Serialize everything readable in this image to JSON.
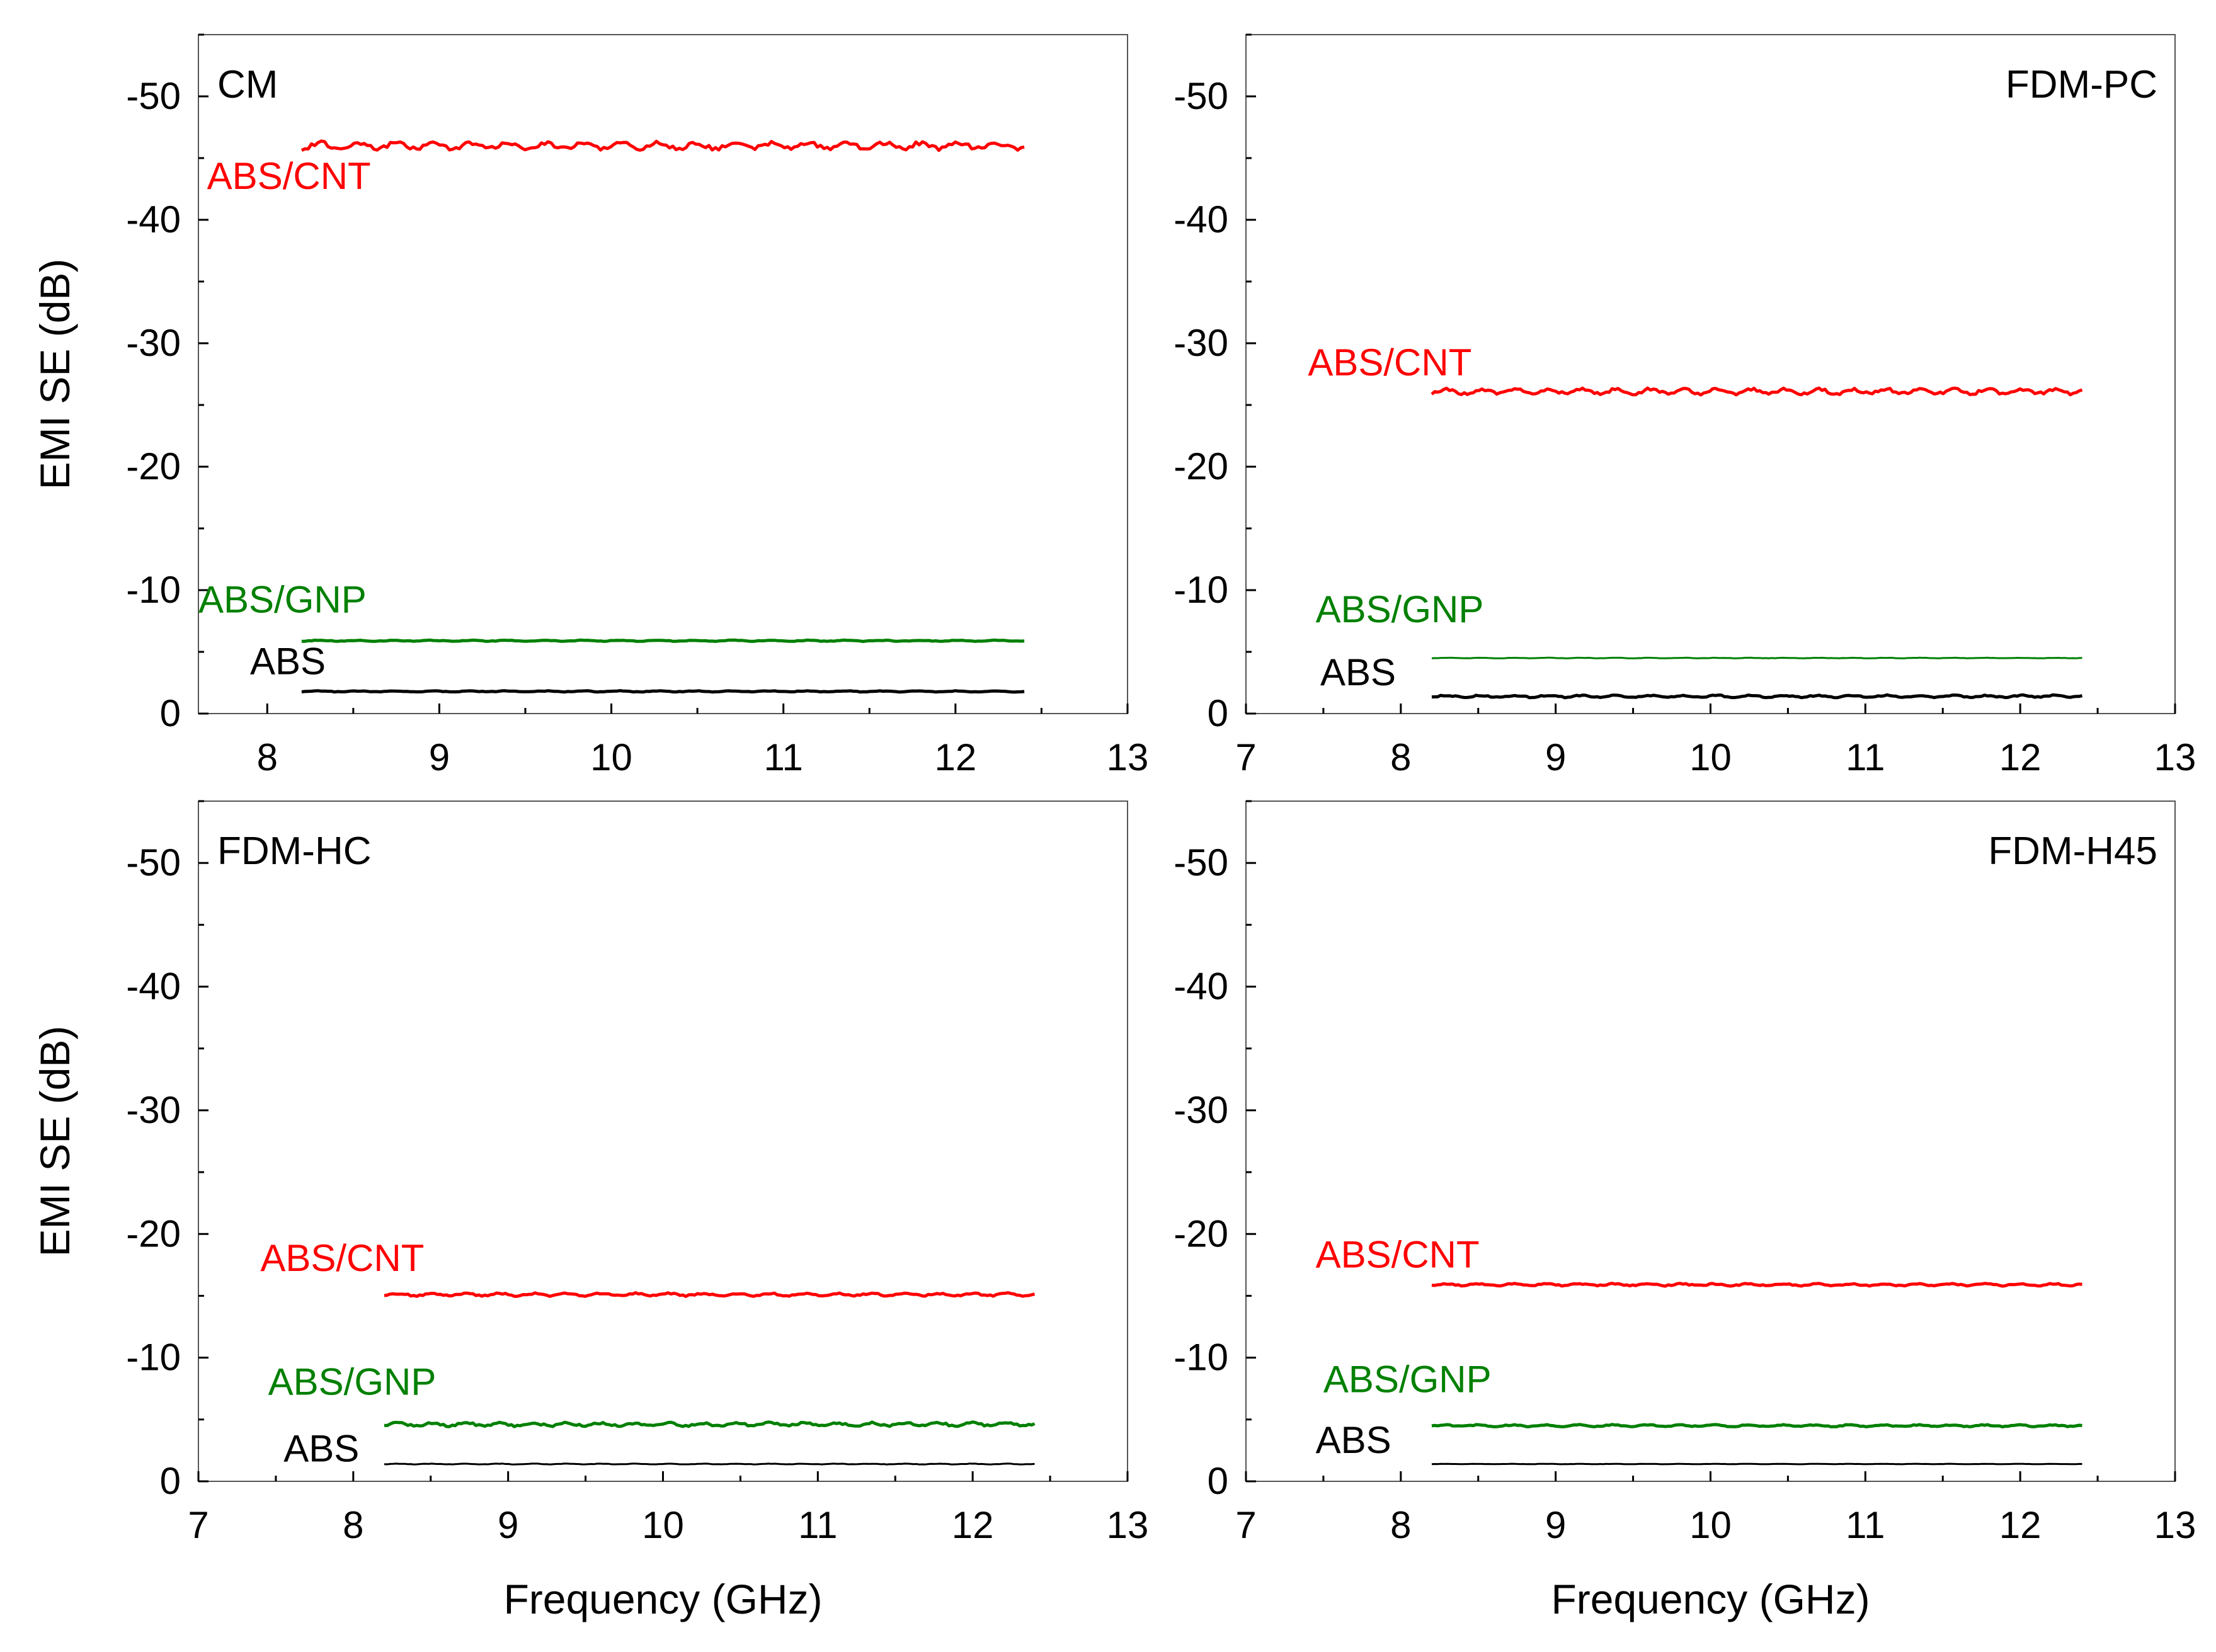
{
  "colors": {
    "ABS": "#000000",
    "ABS/GNP": "#008000",
    "ABS/CNT": "#ff0000",
    "axis": "#000000"
  },
  "chart_data": [
    {
      "type": "line",
      "title": "CM",
      "title_position": "top-left",
      "xlim": [
        7.6,
        13
      ],
      "ylim": [
        0,
        -55
      ],
      "xticks": [
        "8",
        "9",
        "10",
        "11",
        "12",
        "13"
      ],
      "yticks": [
        "0",
        "-10",
        "-20",
        "-30",
        "-40",
        "-50"
      ],
      "xlabel": "",
      "ylabel": "EMI SE (dB)",
      "x_range": [
        8.2,
        12.4
      ],
      "series": [
        {
          "name": "ABS/CNT",
          "level": -46.0,
          "noise": 0.4,
          "label": "ABS/CNT",
          "label_x": 7.65,
          "label_y": -42.5
        },
        {
          "name": "ABS/GNP",
          "level": -5.9,
          "noise": 0.06,
          "label": "ABS/GNP",
          "label_x": 7.6,
          "label_y": -8.2
        },
        {
          "name": "ABS",
          "level": -1.8,
          "noise": 0.06,
          "label": "ABS",
          "label_x": 7.9,
          "label_y": -3.2
        }
      ]
    },
    {
      "type": "line",
      "title": "FDM-PC",
      "title_position": "top-right",
      "xlim": [
        7,
        13
      ],
      "ylim": [
        0,
        -55
      ],
      "xticks": [
        "7",
        "8",
        "9",
        "10",
        "11",
        "12",
        "13"
      ],
      "yticks": [
        "0",
        "-10",
        "-20",
        "-30",
        "-40",
        "-50"
      ],
      "xlabel": "",
      "ylabel": "",
      "x_range": [
        8.2,
        12.4
      ],
      "series": [
        {
          "name": "ABS/CNT",
          "level": -26.1,
          "noise": 0.3,
          "label": "ABS/CNT",
          "label_x": 7.4,
          "label_y": -27.4
        },
        {
          "name": "ABS/GNP",
          "level": -4.5,
          "noise": 0.03,
          "label": "ABS/GNP",
          "label_x": 7.45,
          "label_y": -7.4
        },
        {
          "name": "ABS",
          "level": -1.4,
          "noise": 0.12,
          "label": "ABS",
          "label_x": 7.48,
          "label_y": -2.3
        }
      ]
    },
    {
      "type": "line",
      "title": "FDM-HC",
      "title_position": "top-left",
      "xlim": [
        7,
        13
      ],
      "ylim": [
        0,
        -55
      ],
      "xticks": [
        "7",
        "8",
        "9",
        "10",
        "11",
        "12",
        "13"
      ],
      "yticks": [
        "0",
        "-10",
        "-20",
        "-30",
        "-40",
        "-50"
      ],
      "xlabel": "Frequency (GHz)",
      "ylabel": "EMI SE (dB)",
      "x_range": [
        8.2,
        12.4
      ],
      "series": [
        {
          "name": "ABS/CNT",
          "level": -15.1,
          "noise": 0.15,
          "label": "ABS/CNT",
          "label_x": 7.4,
          "label_y": -17.0
        },
        {
          "name": "ABS/GNP",
          "level": -4.6,
          "noise": 0.2,
          "label": "ABS/GNP",
          "label_x": 7.45,
          "label_y": -7.0
        },
        {
          "name": "ABS",
          "level": -1.4,
          "noise": 0.04,
          "label": "ABS",
          "label_x": 7.55,
          "label_y": -1.6
        }
      ]
    },
    {
      "type": "line",
      "title": "FDM-H45",
      "title_position": "top-right",
      "xlim": [
        7,
        13
      ],
      "ylim": [
        0,
        -55
      ],
      "xticks": [
        "7",
        "8",
        "9",
        "10",
        "11",
        "12",
        "13"
      ],
      "yticks": [
        "0",
        "-10",
        "-20",
        "-30",
        "-40",
        "-50"
      ],
      "xlabel": "Frequency (GHz)",
      "ylabel": "",
      "x_range": [
        8.2,
        12.4
      ],
      "series": [
        {
          "name": "ABS/CNT",
          "level": -15.9,
          "noise": 0.12,
          "label": "ABS/CNT",
          "label_x": 7.45,
          "label_y": -17.3
        },
        {
          "name": "ABS/GNP",
          "level": -4.5,
          "noise": 0.1,
          "label": "ABS/GNP",
          "label_x": 7.5,
          "label_y": -7.2
        },
        {
          "name": "ABS",
          "level": -1.4,
          "noise": 0.02,
          "label": "ABS",
          "label_x": 7.45,
          "label_y": -2.3
        }
      ]
    }
  ]
}
